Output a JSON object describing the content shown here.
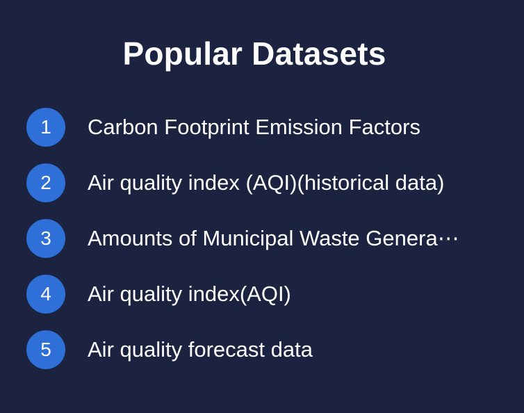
{
  "title": "Popular Datasets",
  "colors": {
    "background": "#1b2340",
    "badge": "#2f6fd8",
    "text": "#ffffff"
  },
  "datasets": [
    {
      "rank": "1",
      "name": "Carbon Footprint Emission Factors"
    },
    {
      "rank": "2",
      "name": "Air quality index (AQI)(historical data)"
    },
    {
      "rank": "3",
      "name": "Amounts of Municipal Waste Genera⋯"
    },
    {
      "rank": "4",
      "name": "Air quality index(AQI)"
    },
    {
      "rank": "5",
      "name": "Air quality forecast data"
    }
  ]
}
